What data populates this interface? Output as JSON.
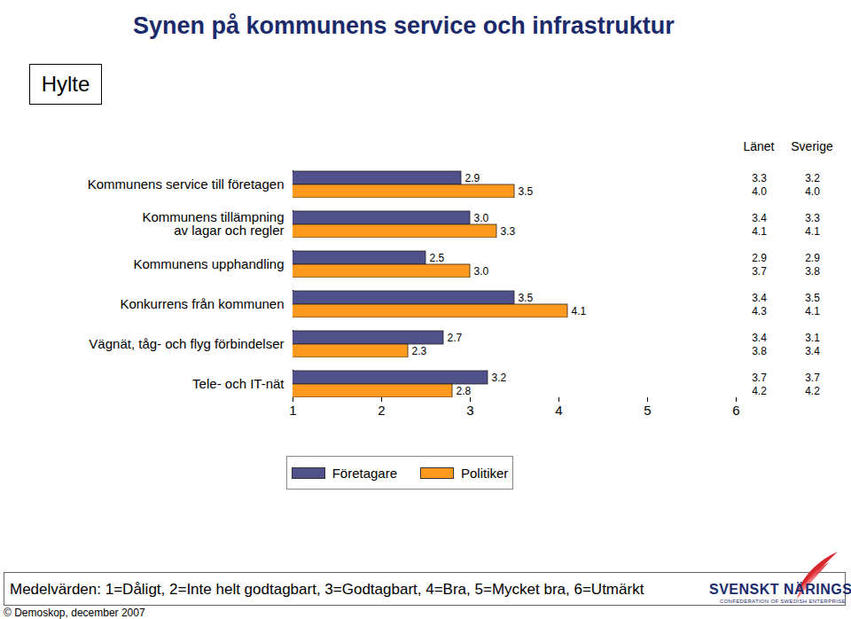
{
  "chart_data": {
    "type": "bar",
    "orientation": "horizontal",
    "title": "Synen på kommunens service och infrastruktur",
    "categories": [
      "Kommunens service till företagen",
      "Kommunens tillämpning\nav lagar och regler",
      "Kommunens upphandling",
      "Konkurrens från kommunen",
      "Vägnät, tåg- och flyg förbindelser",
      "Tele- och IT-nät"
    ],
    "series": [
      {
        "name": "Företagare",
        "color": "#50508a",
        "values": [
          2.9,
          3.0,
          2.5,
          3.5,
          2.7,
          3.2
        ],
        "value_labels": [
          "2.9",
          "3.0",
          "2.5",
          "3.5",
          "2.7",
          "3.2"
        ]
      },
      {
        "name": "Politiker",
        "color": "#ff9a1f",
        "values": [
          3.5,
          3.3,
          3.0,
          4.1,
          2.3,
          2.8
        ],
        "value_labels": [
          "3.5",
          "3.3",
          "3.0",
          "4.1",
          "2.3",
          "2.8"
        ]
      }
    ],
    "xlim": [
      1,
      6
    ],
    "xticks": [
      1,
      2,
      3,
      4,
      5,
      6
    ],
    "data_labels": true,
    "grid": false,
    "legend": "bottom",
    "comparison": {
      "columns": [
        "Länet",
        "Sverige"
      ],
      "rows": [
        [
          [
            "3.3",
            "3.2"
          ],
          [
            "4.0",
            "4.0"
          ]
        ],
        [
          [
            "3.4",
            "3.3"
          ],
          [
            "4.1",
            "4.1"
          ]
        ],
        [
          [
            "2.9",
            "2.9"
          ],
          [
            "3.7",
            "3.8"
          ]
        ],
        [
          [
            "3.4",
            "3.5"
          ],
          [
            "4.3",
            "4.1"
          ]
        ],
        [
          [
            "3.4",
            "3.1"
          ],
          [
            "3.8",
            "3.4"
          ]
        ],
        [
          [
            "3.7",
            "3.7"
          ],
          [
            "4.2",
            "4.2"
          ]
        ]
      ]
    },
    "caption": "Medelvärden: 1=Dåligt, 2=Inte helt godtagbart, 3=Godtagbart, 4=Bra, 5=Mycket bra, 6=Utmärkt"
  },
  "header": {
    "region": "Hylte"
  },
  "footer": {
    "source": "© Demoskop, december 2007",
    "logo": {
      "name": "SVENSKT NÄRINGSLIV",
      "tagline": "CONFEDERATION OF SWEDISH ENTERPRISE"
    }
  }
}
